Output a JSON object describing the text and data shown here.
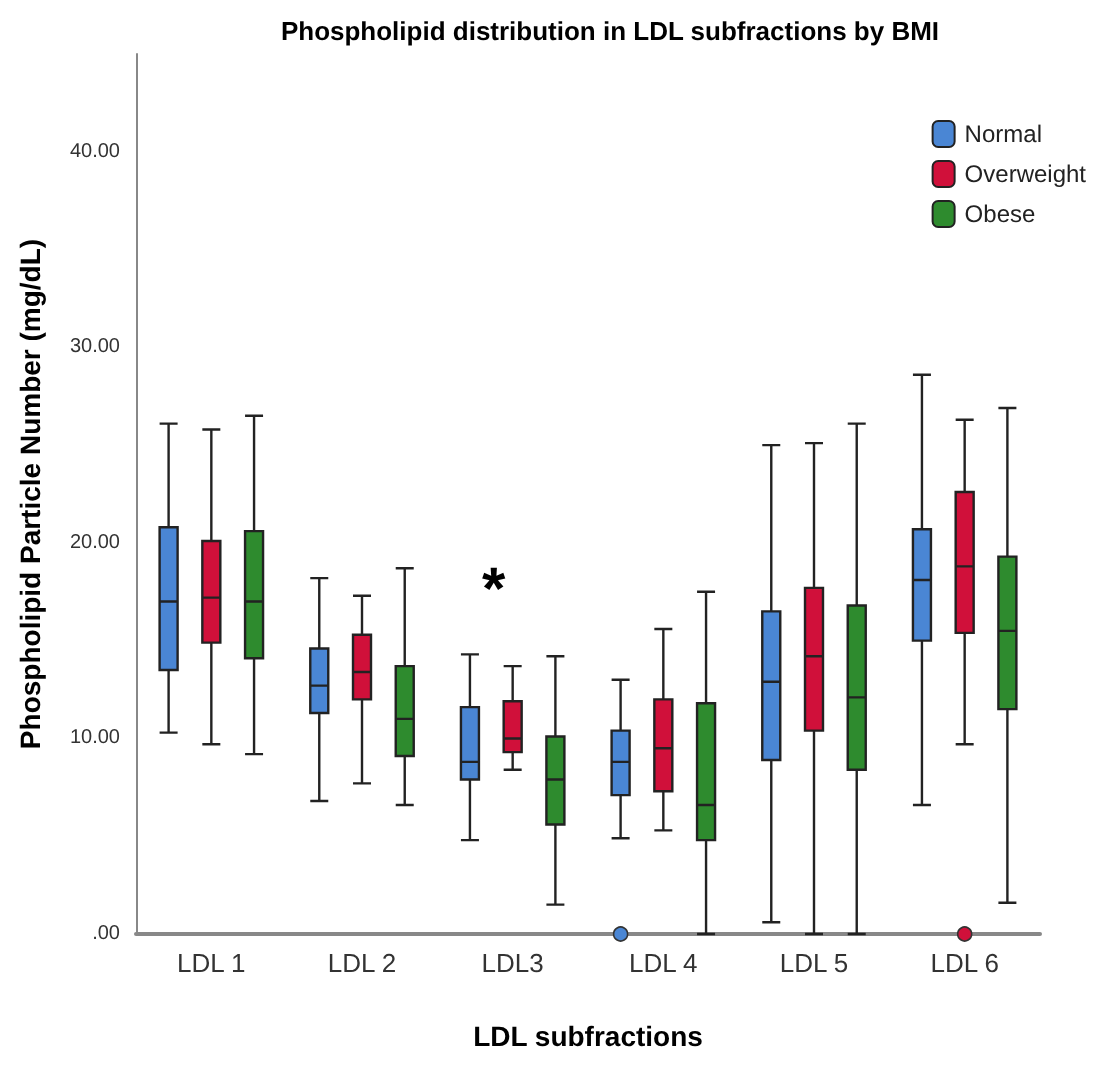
{
  "chart_data": {
    "type": "box",
    "title": "Phospholipid distribution in LDL subfractions by BMI",
    "xlabel": "LDL subfractions",
    "ylabel": "Phospholipid Particle Number (mg/dL)",
    "categories": [
      "LDL 1",
      "LDL 2",
      "LDL3",
      "LDL 4",
      "LDL 5",
      "LDL 6"
    ],
    "series": [
      {
        "name": "Normal",
        "color": "#4a86d4",
        "boxes": [
          {
            "low": 10.3,
            "q1": 13.5,
            "median": 17.0,
            "q3": 20.8,
            "high": 26.1
          },
          {
            "low": 6.8,
            "q1": 11.3,
            "median": 12.7,
            "q3": 14.6,
            "high": 18.2
          },
          {
            "low": 4.8,
            "q1": 7.9,
            "median": 8.8,
            "q3": 11.6,
            "high": 14.3
          },
          {
            "low": 4.9,
            "q1": 7.1,
            "median": 8.8,
            "q3": 10.4,
            "high": 13.0,
            "outliers": [
              0
            ]
          },
          {
            "low": 0.6,
            "q1": 8.9,
            "median": 12.9,
            "q3": 16.5,
            "high": 25.0
          },
          {
            "low": 6.6,
            "q1": 15.0,
            "median": 18.1,
            "q3": 20.7,
            "high": 28.6
          }
        ]
      },
      {
        "name": "Overweight",
        "color": "#d0103a",
        "boxes": [
          {
            "low": 9.7,
            "q1": 14.9,
            "median": 17.2,
            "q3": 20.1,
            "high": 25.8
          },
          {
            "low": 7.7,
            "q1": 12.0,
            "median": 13.4,
            "q3": 15.3,
            "high": 17.3
          },
          {
            "low": 8.4,
            "q1": 9.3,
            "median": 10.0,
            "q3": 11.9,
            "high": 13.7
          },
          {
            "low": 5.3,
            "q1": 7.3,
            "median": 9.5,
            "q3": 12.0,
            "high": 15.6
          },
          {
            "low": 0,
            "q1": 10.4,
            "median": 14.2,
            "q3": 17.7,
            "high": 25.1
          },
          {
            "low": 9.7,
            "q1": 15.4,
            "median": 18.8,
            "q3": 22.6,
            "high": 26.3,
            "outliers": [
              0
            ]
          }
        ]
      },
      {
        "name": "Obese",
        "color": "#2e8b2e",
        "boxes": [
          {
            "low": 9.2,
            "q1": 14.1,
            "median": 17.0,
            "q3": 20.6,
            "high": 26.5
          },
          {
            "low": 6.6,
            "q1": 9.1,
            "median": 11.0,
            "q3": 13.7,
            "high": 18.7
          },
          {
            "low": 1.5,
            "q1": 5.6,
            "median": 7.9,
            "q3": 10.1,
            "high": 14.2
          },
          {
            "low": 0,
            "q1": 4.8,
            "median": 6.6,
            "q3": 11.8,
            "high": 17.5
          },
          {
            "low": 0,
            "q1": 8.4,
            "median": 12.1,
            "q3": 16.8,
            "high": 26.1
          },
          {
            "low": 1.6,
            "q1": 11.5,
            "median": 15.5,
            "q3": 19.3,
            "high": 26.9
          }
        ]
      }
    ],
    "ylim": [
      0,
      45
    ],
    "yticks": [
      {
        "value": 0,
        "label": ".00"
      },
      {
        "value": 10,
        "label": "10.00"
      },
      {
        "value": 20,
        "label": "20.00"
      },
      {
        "value": 30,
        "label": "30.00"
      },
      {
        "value": 40,
        "label": "40.00"
      }
    ],
    "annotations": [
      "*"
    ],
    "grid": false,
    "legend": "top right"
  }
}
